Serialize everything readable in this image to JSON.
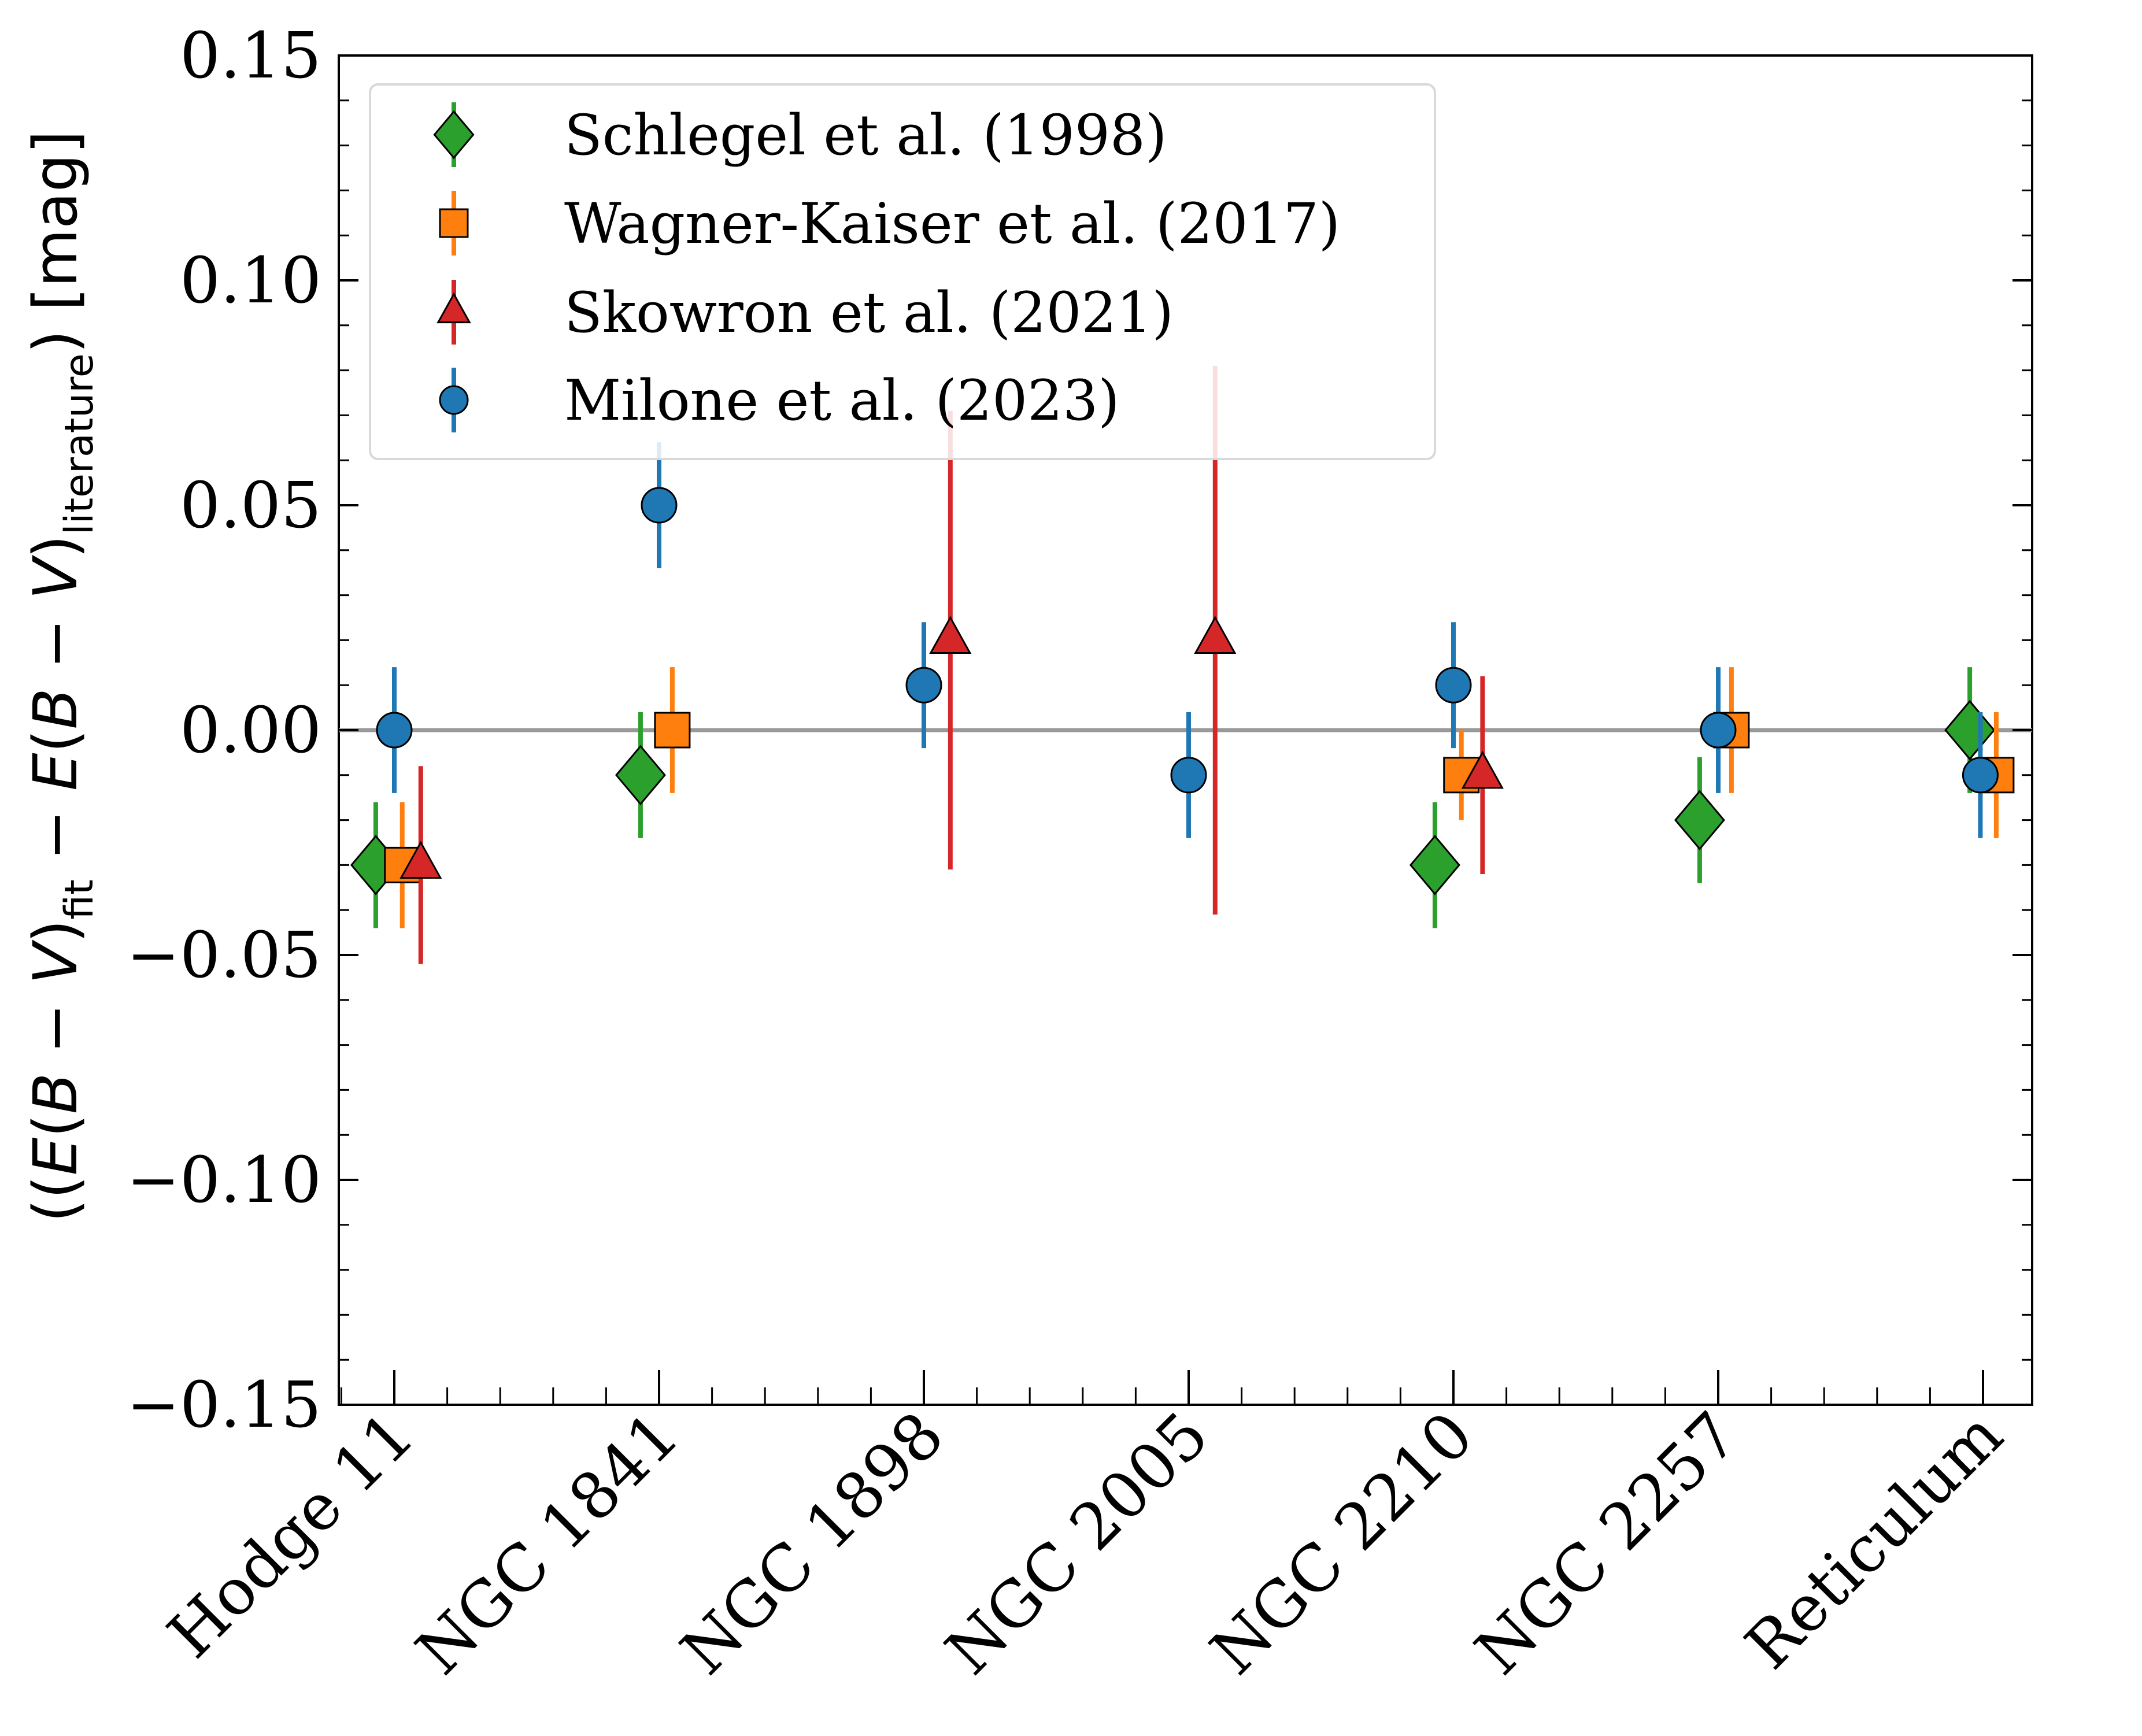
{
  "chart_data": {
    "type": "scatter",
    "ylabel": {
      "part1": "((",
      "e1": "E",
      "p1": "(",
      "b1": "B",
      "m1": " − ",
      "v1": "V",
      "c1": ")",
      "sub1": "fit",
      "minus": " − ",
      "e2": "E",
      "p2": "(",
      "b2": "B",
      "m2": " − ",
      "v2": "V",
      "c2": ")",
      "sub2": "literature",
      "unit": ") [mag]"
    },
    "ylim": [
      -0.15,
      0.15
    ],
    "yticks": [
      {
        "value": 0.15,
        "label": "0.15"
      },
      {
        "value": 0.1,
        "label": "0.10"
      },
      {
        "value": 0.05,
        "label": "0.05"
      },
      {
        "value": 0.0,
        "label": "0.00"
      },
      {
        "value": -0.05,
        "label": "−0.05"
      },
      {
        "value": -0.1,
        "label": "−0.10"
      },
      {
        "value": -0.15,
        "label": "−0.15"
      }
    ],
    "categories": [
      "Hodge 11",
      "NGC 1841",
      "NGC 1898",
      "NGC 2005",
      "NGC 2210",
      "NGC 2257",
      "Reticulum"
    ],
    "reference_line": 0.0,
    "legend_position": "top-left",
    "series": [
      {
        "name": "Schlegel et al. (1998)",
        "marker": "diamond",
        "color": "#2ca02c",
        "offset": -0.07,
        "points": [
          {
            "cat": 0,
            "y": -0.03,
            "err": 0.014
          },
          {
            "cat": 1,
            "y": -0.01,
            "err": 0.014
          },
          {
            "cat": 4,
            "y": -0.03,
            "err": 0.014
          },
          {
            "cat": 5,
            "y": -0.02,
            "err": 0.014
          },
          {
            "cat": 6,
            "y": 0.0,
            "err": 0.014
          }
        ]
      },
      {
        "name": "Wagner-Kaiser et al. (2017)",
        "marker": "square",
        "color": "#ff7f0e",
        "offset": 0.05,
        "points": [
          {
            "cat": 0,
            "y": -0.03,
            "err": 0.014
          },
          {
            "cat": 1,
            "y": 0.0,
            "err": 0.014
          },
          {
            "cat": 4,
            "y": -0.01,
            "err": 0.01
          },
          {
            "cat": 5,
            "y": 0.0,
            "err": 0.014
          },
          {
            "cat": 6,
            "y": -0.01,
            "err": 0.014
          }
        ]
      },
      {
        "name": "Skowron et al. (2021)",
        "marker": "triangle",
        "color": "#d62728",
        "offset": 0.1,
        "points": [
          {
            "cat": 0,
            "y": -0.03,
            "err": 0.022
          },
          {
            "cat": 2,
            "y": 0.02,
            "err": 0.051
          },
          {
            "cat": 3,
            "y": 0.02,
            "err": 0.061
          },
          {
            "cat": 4,
            "y": -0.01,
            "err": 0.022
          }
        ]
      },
      {
        "name": "Milone et al. (2023)",
        "marker": "circle",
        "color": "#1f77b4",
        "offset": 0.0,
        "points": [
          {
            "cat": 0,
            "y": 0.0,
            "err": 0.014,
            "dx": 0.0
          },
          {
            "cat": 1,
            "y": 0.05,
            "err": 0.014,
            "dx": 0.0
          },
          {
            "cat": 2,
            "y": 0.01,
            "err": 0.014,
            "dx": 0.0
          },
          {
            "cat": 3,
            "y": -0.01,
            "err": 0.014,
            "dx": 0.0
          },
          {
            "cat": 4,
            "y": 0.01,
            "err": 0.014,
            "dx": 0.0
          },
          {
            "cat": 5,
            "y": 0.0,
            "err": 0.014,
            "dx": 0.0
          },
          {
            "cat": 6,
            "y": -0.01,
            "err": 0.014,
            "dx": 0.0
          }
        ]
      }
    ]
  }
}
